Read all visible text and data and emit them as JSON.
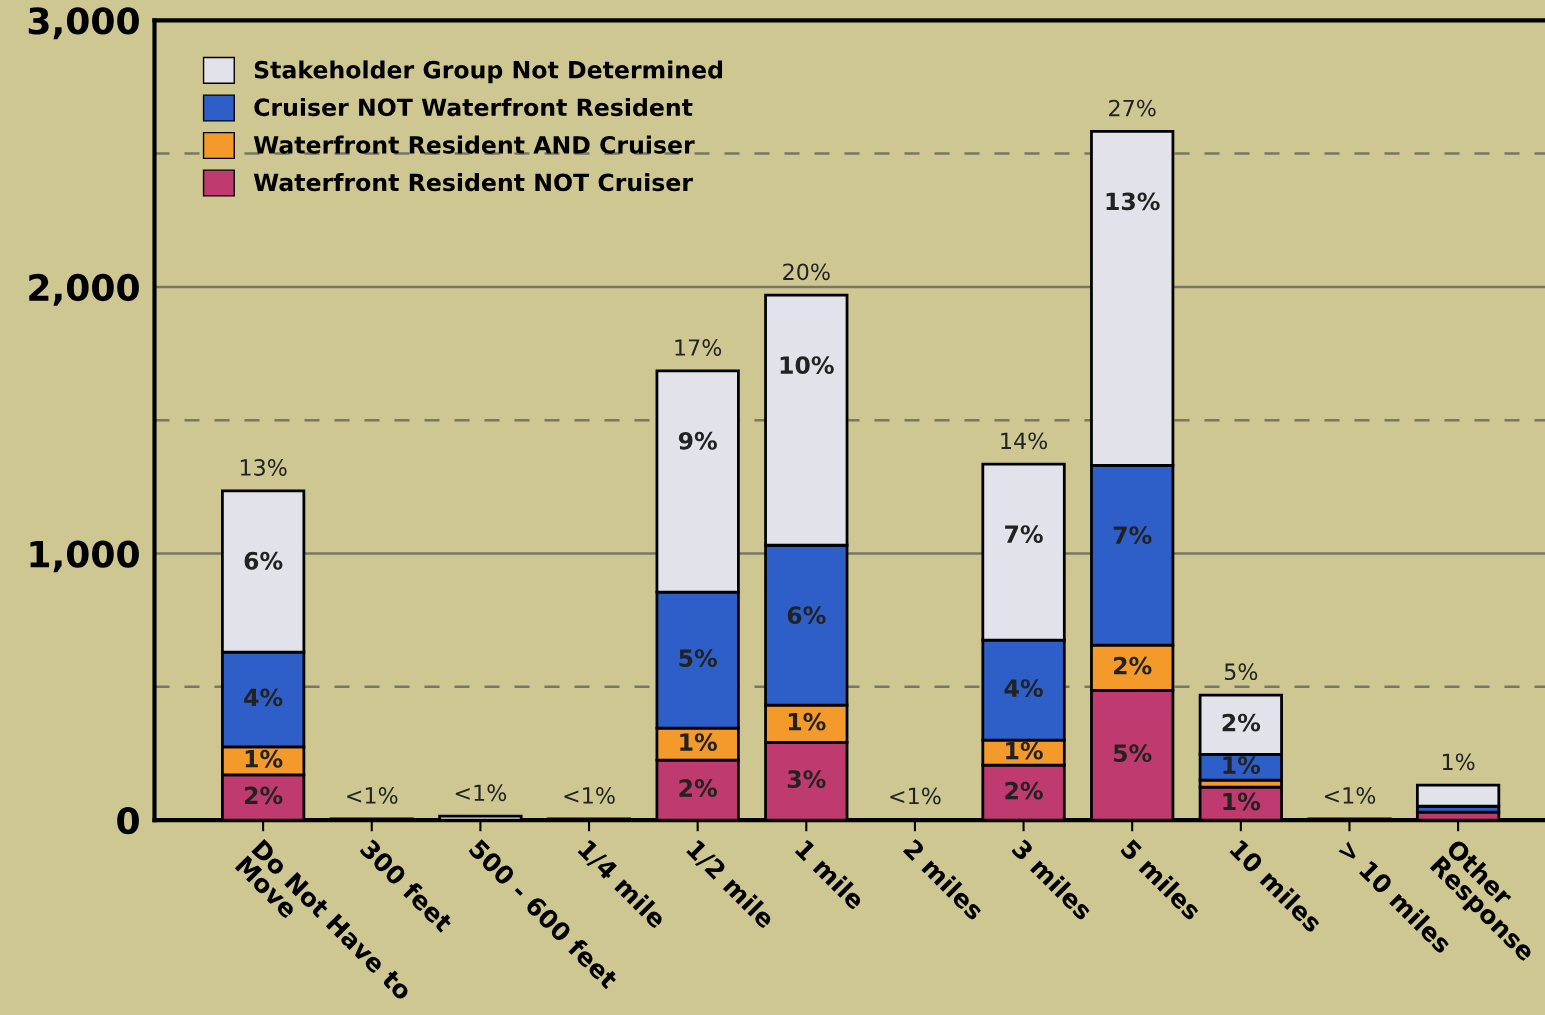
{
  "chart_data": {
    "type": "bar",
    "stacked": true,
    "categories": [
      "Do Not Have to\nMove",
      "300 feet",
      "500 - 600 feet",
      "1/4 mile",
      "1/2 mile",
      "1 mile",
      "2 miles",
      "3 miles",
      "5 miles",
      "10 miles",
      "> 10 miles",
      "Other\nResponse"
    ],
    "series": [
      {
        "name": "Waterfront Resident NOT Cruiser",
        "color": "#bf3a6e",
        "values": [
          170,
          null,
          null,
          null,
          225,
          292,
          null,
          206,
          487,
          124,
          null,
          30
        ]
      },
      {
        "name": "Waterfront Resident AND Cruiser",
        "color": "#f39a2a",
        "values": [
          105,
          null,
          null,
          null,
          120,
          139,
          null,
          94,
          169,
          26,
          null,
          null
        ]
      },
      {
        "name": "Cruiser NOT Waterfront Resident",
        "color": "#2e5fc8",
        "values": [
          355,
          null,
          null,
          null,
          510,
          600,
          null,
          375,
          675,
          97,
          null,
          22
        ]
      },
      {
        "name": "Stakeholder Group Not Determined",
        "color": "#e2e2ea",
        "values": [
          605,
          5,
          15,
          5,
          830,
          938,
          3,
          660,
          1252,
          222,
          5,
          79
        ]
      }
    ],
    "annotations": [
      {
        "text": "2%",
        "x": "Do Not Have to\nMove",
        "y": 170
      },
      {
        "text": "1%",
        "x": "Do Not Have to\nMove",
        "y": 275
      },
      {
        "text": "4%",
        "x": "Do Not Have to\nMove",
        "y": 630
      },
      {
        "text": "6%",
        "x": "Do Not Have to\nMove",
        "y": 1235
      },
      {
        "text": "13%",
        "x": "Do Not Have to\nMove",
        "y": 1235
      },
      {
        "text": "<1%",
        "x": "300 feet",
        "y": 5
      },
      {
        "text": "<1%",
        "x": "500 - 600 feet",
        "y": 15
      },
      {
        "text": "<1%",
        "x": "1/4 mile",
        "y": 5
      },
      {
        "text": "2%",
        "x": "1/2 mile",
        "y": 225
      },
      {
        "text": "1%",
        "x": "1/2 mile",
        "y": 345
      },
      {
        "text": "5%",
        "x": "1/2 mile",
        "y": 855
      },
      {
        "text": "9%",
        "x": "1/2 mile",
        "y": 1685
      },
      {
        "text": "17%",
        "x": "1/2 mile",
        "y": 1685
      },
      {
        "text": "3%",
        "x": "1 mile",
        "y": 292
      },
      {
        "text": "1%",
        "x": "1 mile",
        "y": 431
      },
      {
        "text": "6%",
        "x": "1 mile",
        "y": 1031
      },
      {
        "text": "10%",
        "x": "1 mile",
        "y": 1969
      },
      {
        "text": "20%",
        "x": "1 mile",
        "y": 1969
      },
      {
        "text": "<1%",
        "x": "2 miles",
        "y": 3
      },
      {
        "text": "2%",
        "x": "3 miles",
        "y": 206
      },
      {
        "text": "1%",
        "x": "3 miles",
        "y": 300
      },
      {
        "text": "4%",
        "x": "3 miles",
        "y": 675
      },
      {
        "text": "7%",
        "x": "3 miles",
        "y": 1335
      },
      {
        "text": "14%",
        "x": "3 miles",
        "y": 1335
      },
      {
        "text": "5%",
        "x": "5 miles",
        "y": 487
      },
      {
        "text": "2%",
        "x": "5 miles",
        "y": 656
      },
      {
        "text": "7%",
        "x": "5 miles",
        "y": 1331
      },
      {
        "text": "13%",
        "x": "5 miles",
        "y": 2583
      },
      {
        "text": "27%",
        "x": "5 miles",
        "y": 2583
      },
      {
        "text": "1%",
        "x": "10 miles",
        "y": 124
      },
      {
        "text": "1%",
        "x": "10 miles",
        "y": 247
      },
      {
        "text": "2%",
        "x": "10 miles",
        "y": 469
      },
      {
        "text": "5%",
        "x": "10 miles",
        "y": 469
      },
      {
        "text": "<1%",
        "x": "> 10 miles",
        "y": 5
      },
      {
        "text": "1%",
        "x": "Other\nResponse",
        "y": 131
      }
    ],
    "ylim": [
      0,
      3000
    ],
    "yticks": [
      {
        "value": 0,
        "label": "0"
      },
      {
        "value": 500,
        "label": null
      },
      {
        "value": 1000,
        "label": "1,000"
      },
      {
        "value": 1500,
        "label": null
      },
      {
        "value": 2000,
        "label": "2,000"
      },
      {
        "value": 2500,
        "label": null
      },
      {
        "value": 3000,
        "label": "3,000"
      }
    ],
    "grid": "y",
    "legend": "top left"
  }
}
